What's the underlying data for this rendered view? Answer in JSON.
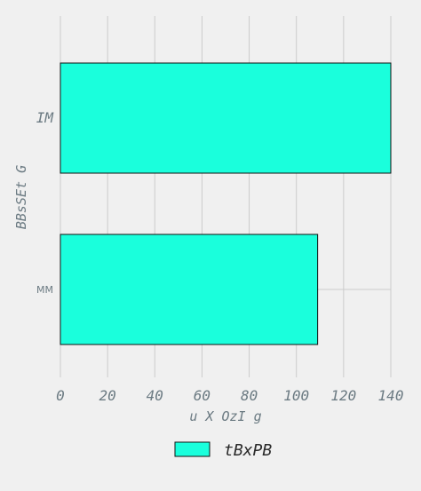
{
  "chart_data": {
    "type": "bar",
    "orientation": "horizontal",
    "categories": [
      "IM",
      "MM"
    ],
    "values": [
      140,
      109
    ],
    "series": [
      {
        "name": "tBxPB",
        "values": [
          140,
          109
        ],
        "color": "#1affdc"
      }
    ],
    "xlabel": "u X OzI g",
    "ylabel": "BBsSEt  G",
    "xlim": [
      0,
      140
    ],
    "xticks": [
      "0",
      "20",
      "40",
      "60",
      "80",
      "100",
      "120",
      "140"
    ],
    "grid": true,
    "legend_position": "bottom-center"
  }
}
